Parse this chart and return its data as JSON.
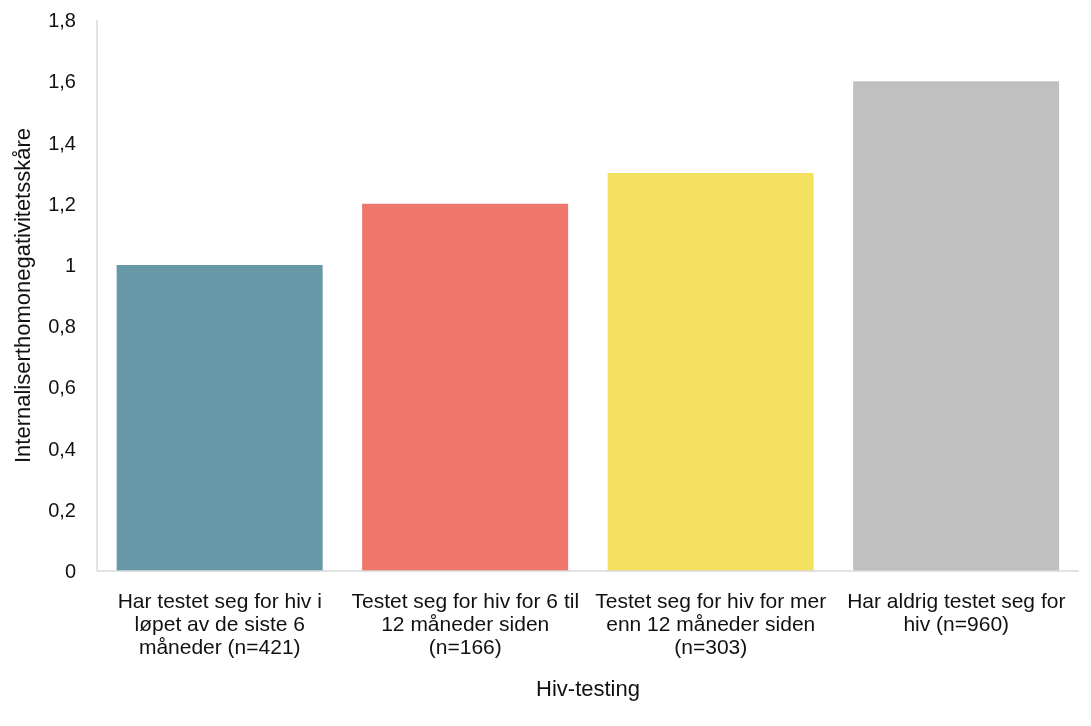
{
  "chart_data": {
    "type": "bar",
    "xlabel": "Hiv-testing",
    "ylabel": "Internaliserthomonegativitetsskåre",
    "categories": [
      "Har testet seg for hiv i løpet av de siste 6 måneder (n=421)",
      "Testet seg for hiv for 6 til 12 måneder siden (n=166)",
      "Testet seg for hiv for mer enn 12 måneder siden (n=303)",
      "Har aldrig testet seg for hiv (n=960)"
    ],
    "values": [
      1.0,
      1.2,
      1.3,
      1.6
    ],
    "colors": [
      "#6798a8",
      "#ee766b",
      "#f4e160",
      "#bfc0bf"
    ],
    "ylim": [
      0,
      1.8
    ],
    "yticks": [
      0,
      {
        "value": 0.2,
        "label": "0,2"
      },
      {
        "value": 0.4,
        "label": "0,4"
      },
      {
        "value": 0.6,
        "label": "0,6"
      },
      {
        "value": 0.8,
        "label": "0,8"
      },
      1,
      {
        "value": 1.2,
        "label": "1,2"
      },
      {
        "value": 1.4,
        "label": "1,4"
      },
      {
        "value": 1.6,
        "label": "1,6"
      },
      {
        "value": 1.8,
        "label": "1,8"
      }
    ]
  }
}
